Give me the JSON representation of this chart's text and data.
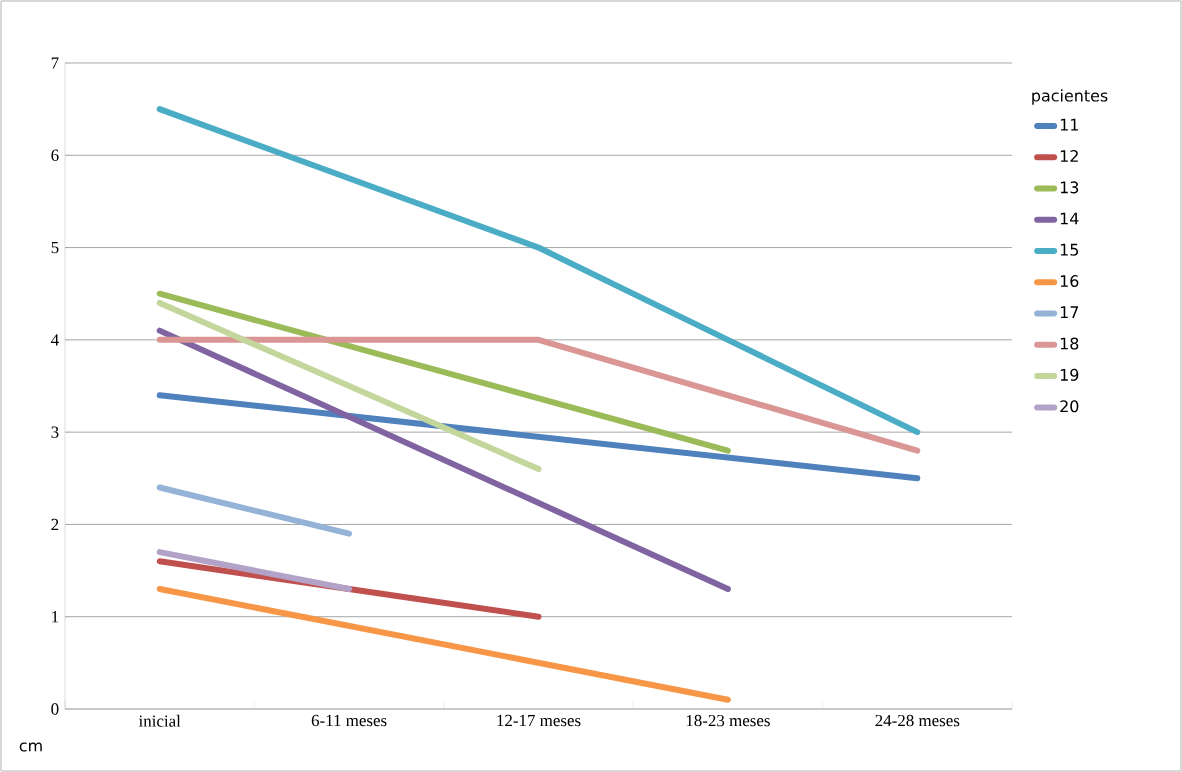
{
  "chart_data": {
    "type": "line",
    "ylabel": "cm",
    "legend_title": "pacientes",
    "categories": [
      "inicial",
      "6-11 meses",
      "12-17 meses",
      "18-23 meses",
      "24-28 meses"
    ],
    "series": [
      {
        "name": "11",
        "color": "#4f81bd",
        "values": [
          3.4,
          null,
          null,
          null,
          2.5
        ]
      },
      {
        "name": "12",
        "color": "#c0504d",
        "values": [
          1.6,
          null,
          1.0,
          null,
          null
        ]
      },
      {
        "name": "13",
        "color": "#9bbb59",
        "values": [
          4.5,
          null,
          null,
          2.8,
          null
        ]
      },
      {
        "name": "14",
        "color": "#8064a2",
        "values": [
          4.1,
          null,
          null,
          1.3,
          null
        ]
      },
      {
        "name": "15",
        "color": "#4bacc6",
        "values": [
          6.5,
          null,
          5.0,
          4.0,
          3.0
        ]
      },
      {
        "name": "16",
        "color": "#f79646",
        "values": [
          1.3,
          null,
          null,
          0.1,
          null
        ]
      },
      {
        "name": "17",
        "color": "#95b3d7",
        "values": [
          2.4,
          1.9,
          null,
          null,
          null
        ]
      },
      {
        "name": "18",
        "color": "#d99694",
        "values": [
          4.0,
          null,
          4.0,
          null,
          2.8
        ]
      },
      {
        "name": "19",
        "color": "#c3d69b",
        "values": [
          4.4,
          null,
          2.6,
          null,
          null
        ]
      },
      {
        "name": "20",
        "color": "#b2a2c7",
        "values": [
          1.7,
          1.3,
          null,
          null,
          null
        ]
      }
    ],
    "ylim": [
      0,
      7
    ],
    "yticks": [
      0,
      1,
      2,
      3,
      4,
      5,
      6,
      7
    ],
    "grid": "y",
    "legend": "right",
    "marker": "none",
    "line_style": "solid"
  }
}
